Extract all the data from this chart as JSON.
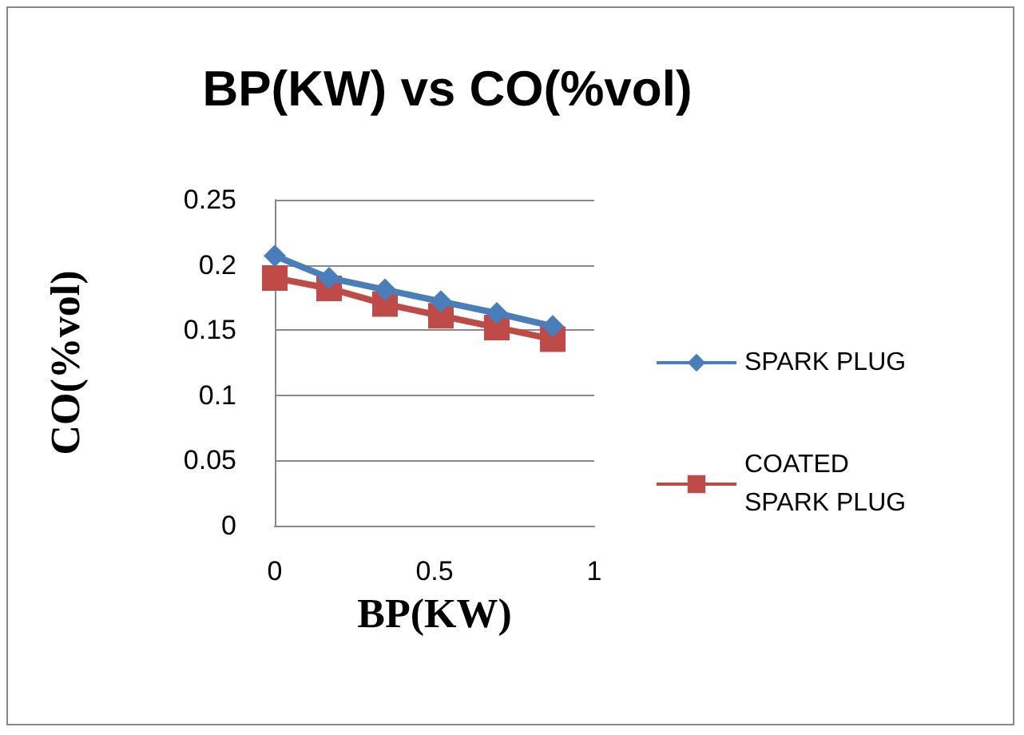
{
  "chart_data": {
    "type": "line",
    "title": "BP(KW) vs CO(%vol)",
    "xlabel": "BP(KW)",
    "ylabel": "CO(%vol)",
    "xlim": [
      0,
      1
    ],
    "xticks": [
      0,
      0.5,
      1
    ],
    "ylim": [
      0,
      0.25
    ],
    "yticks": [
      0,
      0.05,
      0.1,
      0.15,
      0.2,
      0.25
    ],
    "grid": "y",
    "legend": "right",
    "series": [
      {
        "name": "SPARK PLUG",
        "color": "#4a7ebb",
        "marker": "diamond",
        "x": [
          0,
          0.17,
          0.345,
          0.52,
          0.695,
          0.87
        ],
        "values": [
          0.207,
          0.19,
          0.181,
          0.172,
          0.163,
          0.153
        ]
      },
      {
        "name": "COATED SPARK PLUG",
        "color": "#be4b48",
        "marker": "square",
        "x": [
          0,
          0.17,
          0.345,
          0.52,
          0.695,
          0.87
        ],
        "values": [
          0.19,
          0.182,
          0.17,
          0.161,
          0.152,
          0.143
        ]
      }
    ]
  }
}
